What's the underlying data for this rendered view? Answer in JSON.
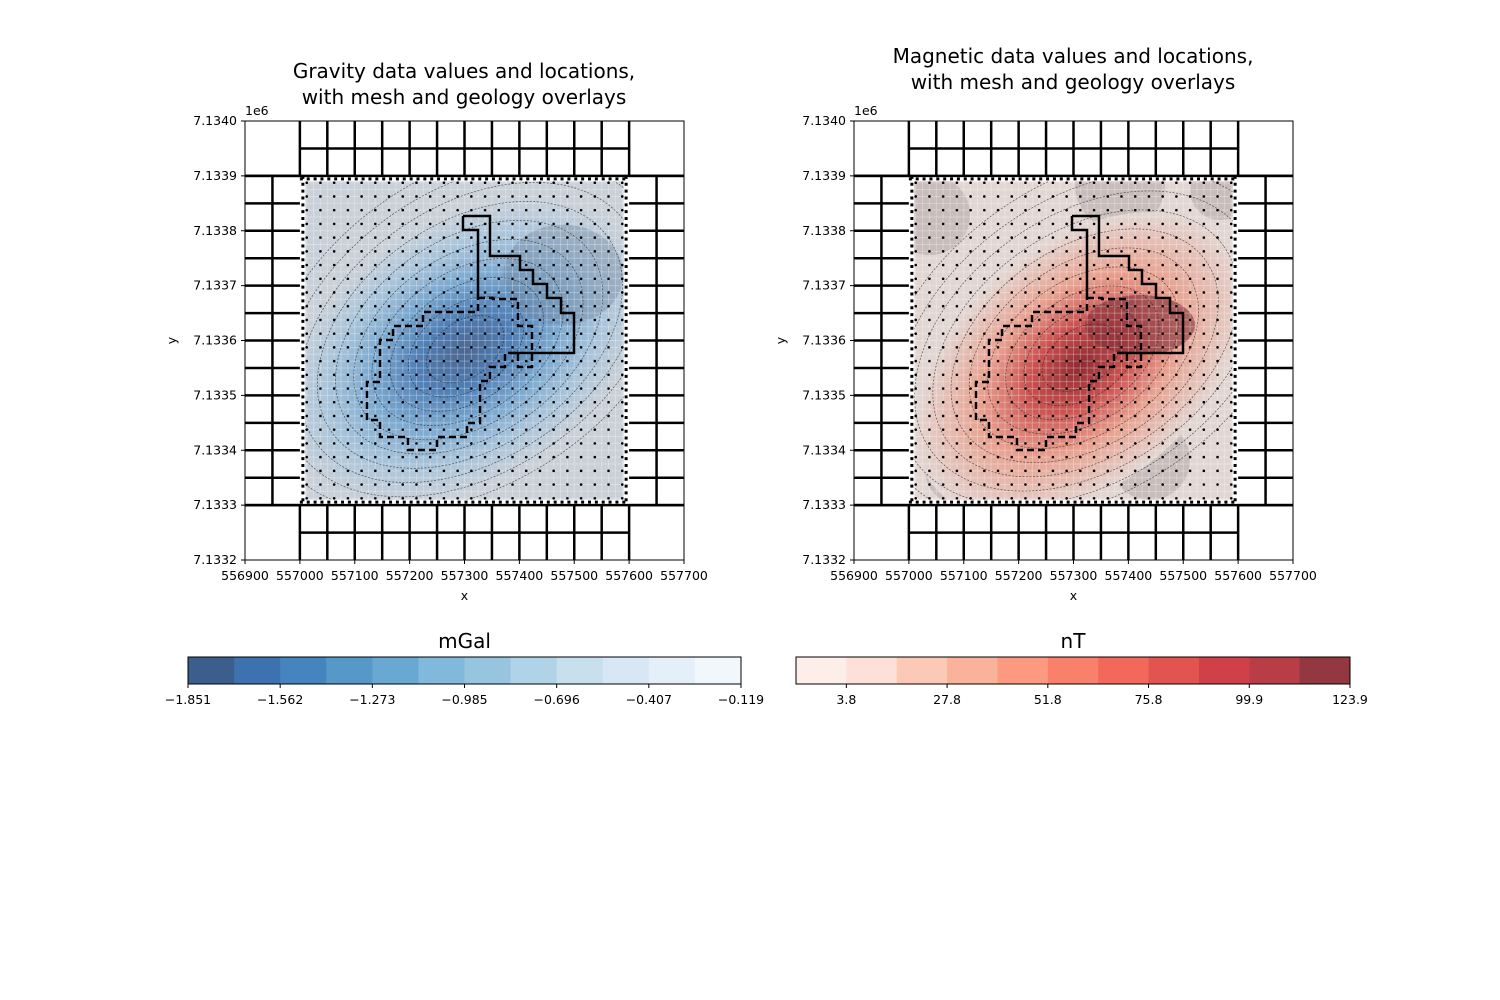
{
  "chart_data": [
    {
      "type": "heatmap",
      "title": [
        "Gravity data values and locations,",
        "with mesh and geology overlays"
      ],
      "xlabel": "x",
      "ylabel": "y",
      "xlim": [
        556900,
        557700
      ],
      "ylim": [
        7133200,
        7134000
      ],
      "x_ticks": [
        "556900",
        "557000",
        "557100",
        "557200",
        "557300",
        "557400",
        "557500",
        "557600",
        "557700"
      ],
      "y_ticks": [
        "7.1332",
        "7.1333",
        "7.1334",
        "7.1335",
        "7.1336",
        "7.1337",
        "7.1338",
        "7.1339",
        "7.1340"
      ],
      "y_offset_label": "1e6",
      "grid": false,
      "field_extremum": {
        "kind": "minimum",
        "x": 557270,
        "y": 7133560
      },
      "colorbar": {
        "label": "mGal",
        "range": [
          -1.851,
          -0.119
        ],
        "tick_labels": [
          "−1.851",
          "−1.562",
          "−1.273",
          "−0.985",
          "−0.696",
          "−0.407",
          "−0.119"
        ],
        "colors": [
          "#3b5e8c",
          "#3d72b0",
          "#4584bf",
          "#5698c8",
          "#68a8d3",
          "#80b9db",
          "#97c5e0",
          "#b1d3e7",
          "#c8dfee",
          "#d8e7f5",
          "#e5eff9",
          "#f2f7fc"
        ]
      }
    },
    {
      "type": "heatmap",
      "title": [
        "Magnetic data values and locations,",
        "with mesh and geology overlays"
      ],
      "xlabel": "x",
      "ylabel": "y",
      "xlim": [
        556900,
        557700
      ],
      "ylim": [
        7133200,
        7134000
      ],
      "x_ticks": [
        "556900",
        "557000",
        "557100",
        "557200",
        "557300",
        "557400",
        "557500",
        "557600",
        "557700"
      ],
      "y_ticks": [
        "7.1332",
        "7.1333",
        "7.1334",
        "7.1335",
        "7.1336",
        "7.1337",
        "7.1338",
        "7.1339",
        "7.1340"
      ],
      "y_offset_label": "1e6",
      "grid": false,
      "field_extremum": {
        "kind": "maximum",
        "x": 557450,
        "y": 7133610
      },
      "colorbar": {
        "label": "nT",
        "range": [
          -8.2,
          123.9
        ],
        "tick_labels": [
          "3.8",
          "27.8",
          "51.8",
          "75.8",
          "99.9",
          "123.9"
        ],
        "colors": [
          "#fdeeea",
          "#fde0d8",
          "#fcc9b7",
          "#fbb29b",
          "#fb9a80",
          "#f9806a",
          "#f2695c",
          "#e2544f",
          "#d04049",
          "#b93d47",
          "#933740"
        ]
      }
    }
  ]
}
